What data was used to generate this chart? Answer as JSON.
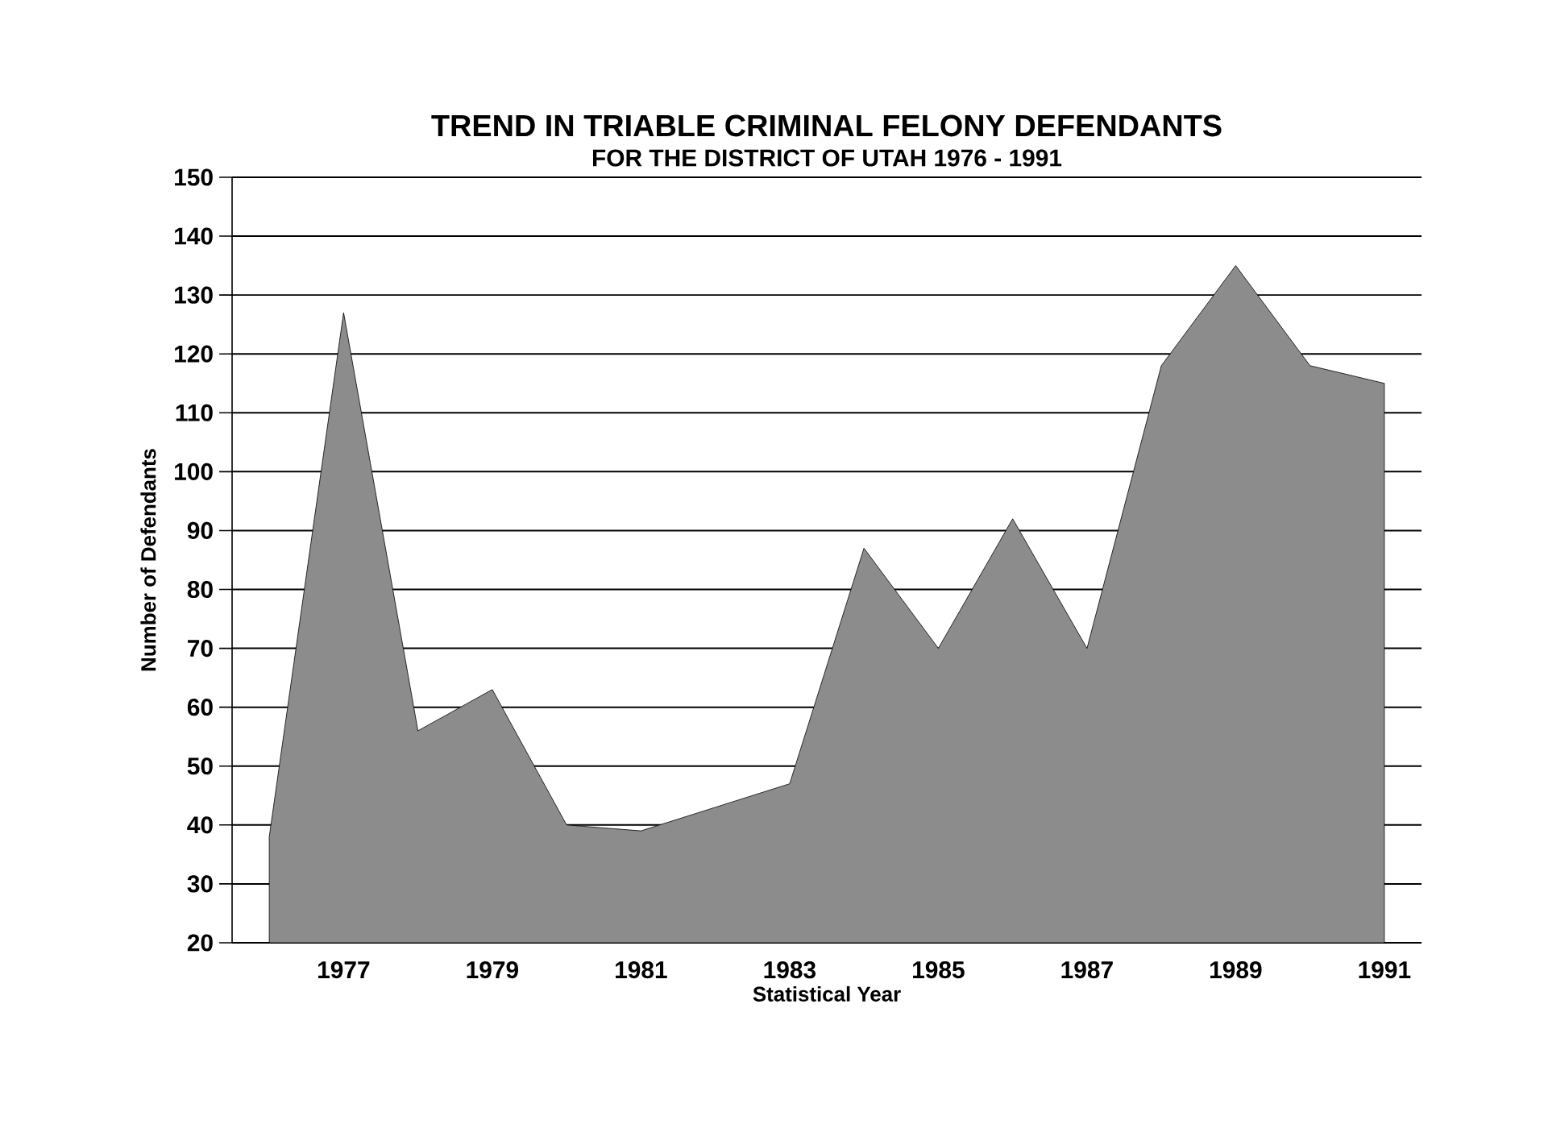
{
  "chart_data": {
    "type": "area",
    "title": "TREND IN TRIABLE CRIMINAL FELONY DEFENDANTS",
    "subtitle": "FOR THE DISTRICT OF UTAH 1976 - 1991",
    "xlabel": "Statistical Year",
    "ylabel": "Number of Defendants",
    "x": [
      1976,
      1977,
      1978,
      1979,
      1980,
      1981,
      1982,
      1983,
      1984,
      1985,
      1986,
      1987,
      1988,
      1989,
      1990,
      1991
    ],
    "values": [
      38,
      127,
      56,
      63,
      40,
      39,
      43,
      47,
      87,
      70,
      92,
      70,
      118,
      135,
      118,
      115
    ],
    "color": "#8c8c8c",
    "xlim": [
      1975.5,
      1991.5
    ],
    "xticks": [
      1977,
      1979,
      1981,
      1983,
      1985,
      1987,
      1989,
      1991
    ],
    "ylim": [
      20,
      150
    ],
    "yticks": [
      20,
      30,
      40,
      50,
      60,
      70,
      80,
      90,
      100,
      110,
      120,
      130,
      140,
      150
    ],
    "grid": "y"
  }
}
